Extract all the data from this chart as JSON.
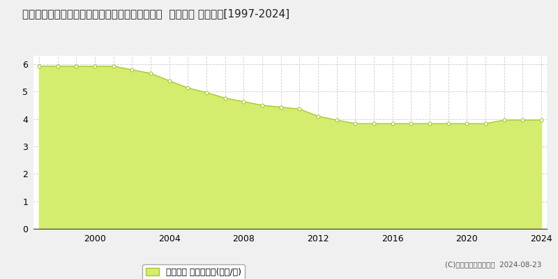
{
  "title": "福島県西白河郡中島村大字滑津字二ツ山３６番１  地価公示 地価推移[1997-2024]",
  "years": [
    1997,
    1998,
    1999,
    2000,
    2001,
    2002,
    2003,
    2004,
    2005,
    2006,
    2007,
    2008,
    2009,
    2010,
    2011,
    2012,
    2013,
    2014,
    2015,
    2016,
    2017,
    2018,
    2019,
    2020,
    2021,
    2022,
    2023,
    2024
  ],
  "values": [
    5.92,
    5.92,
    5.92,
    5.92,
    5.92,
    5.79,
    5.66,
    5.39,
    5.13,
    4.96,
    4.76,
    4.63,
    4.5,
    4.43,
    4.36,
    4.1,
    3.96,
    3.83,
    3.83,
    3.83,
    3.83,
    3.83,
    3.83,
    3.83,
    3.83,
    3.96,
    3.96,
    3.96
  ],
  "fill_color": "#d4ed6e",
  "line_color": "#a8c832",
  "marker_color": "#ffffff",
  "marker_edge_color": "#a8c832",
  "background_color": "#f0f0f0",
  "plot_bg_color": "#ffffff",
  "grid_color": "#cccccc",
  "ylim": [
    0,
    6.3
  ],
  "yticks": [
    0,
    1,
    2,
    3,
    4,
    5,
    6
  ],
  "xticks": [
    2000,
    2004,
    2008,
    2012,
    2016,
    2020,
    2024
  ],
  "legend_label": "地価公示 平均坪単価(万円/坪)",
  "copyright_text": "(C)土地価格ドットコム  2024-08-23",
  "title_fontsize": 11,
  "axis_fontsize": 9,
  "legend_fontsize": 9
}
